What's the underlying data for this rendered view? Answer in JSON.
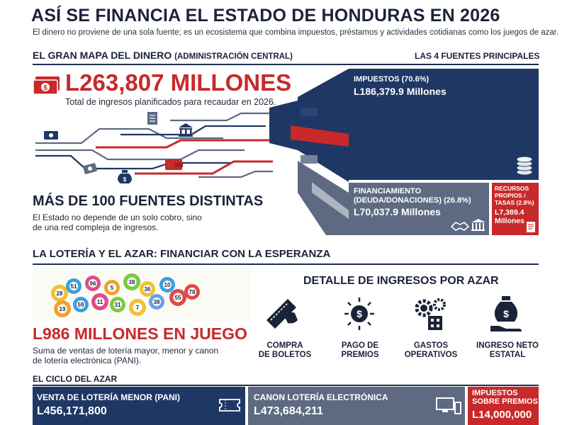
{
  "header": {
    "title": "ASÍ SE FINANCIA EL ESTADO DE HONDURAS EN 2026",
    "subtitle": "El dinero no proviene de una sola fuente; es un ecosistema que combina impuestos, préstamos y actividades cotidianas como los juegos de azar."
  },
  "money_map": {
    "heading": "EL GRAN MAPA DEL DINERO",
    "heading_note": "(ADMINISTRACIÓN CENTRAL)",
    "right_heading": "LAS 4 FUENTES PRINCIPALES",
    "total_value": "L263,807 MILLONES",
    "total_desc": "Total de ingresos planificados para recaudar en 2026.",
    "sources_title": "MÁS DE 100 FUENTES DISTINTAS",
    "sources_desc_1": "El Estado no depende de un solo cobro, sino",
    "sources_desc_2": "de una red compleja de ingresos.",
    "boxes": {
      "impuestos": {
        "label": "IMPUESTOS (70.6%)",
        "value": "L186,379.9 Millones",
        "share": 70.6
      },
      "financiamiento": {
        "label_1": "FINANCIAMIENTO",
        "label_2": "(DEUDA/DONACIONES) (26.8%)",
        "value": "L70,037.9 Millones",
        "share": 26.8
      },
      "recursos": {
        "label_1": "RECURSOS",
        "label_2": "PROPIOS /",
        "label_3": "TASAS (2.8%)",
        "value_1": "L7,389.4",
        "value_2": "Millones",
        "share": 2.8
      }
    },
    "colors": {
      "navy": "#1f3764",
      "gray": "#5d6a82",
      "red": "#c8292b"
    }
  },
  "lottery": {
    "heading": "LA LOTERÍA Y EL AZAR: FINANCIAR CON LA ESPERANZA",
    "ball_numbers": [
      "28",
      "51",
      "96",
      "5",
      "38",
      "36",
      "10",
      "55",
      "38",
      "7",
      "31",
      "11",
      "59",
      "19",
      "78"
    ],
    "value": "L986 MILLONES EN JUEGO",
    "desc_1": "Suma de ventas de lotería mayor, menor y canon",
    "desc_2": "de lotería electrónica (PANI).",
    "detail_heading": "DETALLE DE INGRESOS POR AZAR",
    "detail_items": [
      {
        "icon": "ticket-icon",
        "line1": "COMPRA",
        "line2": "DE BOLETOS"
      },
      {
        "icon": "prize-coin-icon",
        "line1": "PAGO DE",
        "line2": "PREMIOS"
      },
      {
        "icon": "gears-icon",
        "line1": "GASTOS",
        "line2": "OPERATIVOS"
      },
      {
        "icon": "money-bag-hand-icon",
        "line1": "INGRESO NETO",
        "line2": "ESTATAL"
      }
    ]
  },
  "cycle": {
    "heading": "EL CICLO DEL AZAR",
    "items": [
      {
        "label": "VENTA DE LOTERÍA MENOR (PANI)",
        "value": "L456,171,800"
      },
      {
        "label": "CANON LOTERÍA ELECTRÓNICA",
        "value": "L473,684,211"
      },
      {
        "label_1": "IMPUESTOS",
        "label_2": "SOBRE PREMIOS",
        "value": "L14,000,000"
      }
    ]
  }
}
